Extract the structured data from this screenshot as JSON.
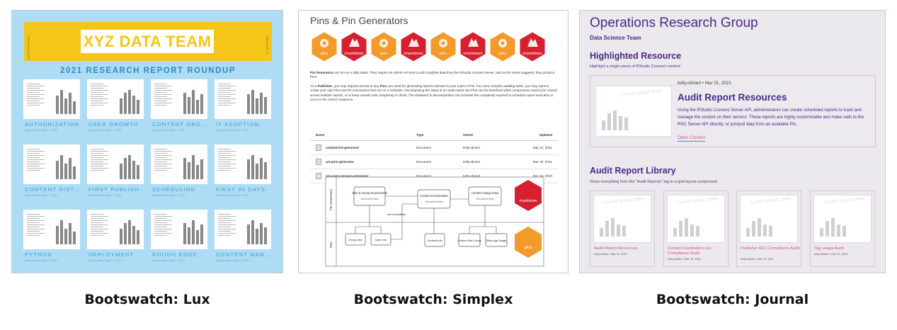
{
  "panels": {
    "lux_label": "Bootswatch: Lux",
    "simplex_label": "Bootswatch: Simplex",
    "journal_label": "Bootswatch: Journal"
  },
  "lux": {
    "banner_title": "XYZ DATA TEAM",
    "banner_side_left": "DASHBOARD",
    "banner_side_right": "REPORTS",
    "subtitle": "2021 RESEARCH REPORT ROUNDUP",
    "cards": [
      {
        "title": "AUTHORIZATION",
        "meta": "kelly.obriant • May 17, 2021"
      },
      {
        "title": "USER GROWTH",
        "meta": "kelly.obriant • May 17, 2021"
      },
      {
        "title": "CONTENT ORG...",
        "meta": "kelly.obriant • May 17, 2021"
      },
      {
        "title": "IT ADOPTION",
        "meta": "kelly.obriant • May 17, 2021"
      },
      {
        "title": "CONTENT DIST...",
        "meta": "kelly.obriant • May 17, 2021"
      },
      {
        "title": "FIRST PUBLISH",
        "meta": "kelly.obriant • May 17, 2021"
      },
      {
        "title": "SCHEDULING",
        "meta": "kelly.obriant • May 17, 2021"
      },
      {
        "title": "FIRST 30 DAYS",
        "meta": "kelly.obriant • May 17, 2021"
      },
      {
        "title": "PYTHON",
        "meta": "kelly.obriant • May 17, 2021"
      },
      {
        "title": "DEPLOYMENT",
        "meta": "kelly.obriant • May 17, 2021"
      },
      {
        "title": "ROUGH EDGE",
        "meta": "kelly.obriant • May 17, 2021"
      },
      {
        "title": "CONTENT MAN...",
        "meta": "kelly.obriant • May 17, 2021"
      }
    ]
  },
  "simplex": {
    "title": "Pins & Pin Generators",
    "hexes": [
      {
        "label": "pins",
        "color": "#f39a2b"
      },
      {
        "label": "rmarkdown",
        "color": "#d6202f"
      },
      {
        "label": "pins",
        "color": "#f39a2b"
      },
      {
        "label": "rmarkdown",
        "color": "#d6202f"
      },
      {
        "label": "pins",
        "color": "#f39a2b"
      },
      {
        "label": "rmarkdown",
        "color": "#d6202f"
      },
      {
        "label": "pins",
        "color": "#f39a2b"
      },
      {
        "label": "rmarkdown",
        "color": "#d6202f"
      }
    ],
    "para1_bold": "Pin Generators",
    "para1": " are run on a daily basis. They require an Admin API Key to pull complete data from the RStudio Connect server, and as the name suggests, they produce Pins.",
    "para2_pre": "As a ",
    "para2_bold1": "Publisher",
    "para2_mid": ", you may request access to any ",
    "para2_bold2": "Pins",
    "para2_post": " you need for generating reports relevant to your team's KPIs. For more complex auditing tasks, you may want to create your own Pins and Pin Generators that run on a schedule. Decomposing the steps of an audit report into Pins can be beneficial when components need to be reused across multiple reports, or to keep overall code complexity in check. The drawback is decomposition can increase the complexity required to schedule report execution to occur in the correct sequence.",
    "table": {
      "headers": [
        "Name",
        "Type",
        "Owner",
        "Updated"
      ],
      "rows": [
        {
          "name": "content-list-generator",
          "type": "Document",
          "owner": "kelly.obriant",
          "updated": "Mar 31, 2021"
        },
        {
          "name": "acl-pins-generator",
          "type": "Document",
          "owner": "kelly.obriant",
          "updated": "Mar 30, 2021"
        },
        {
          "name": "pin-users-groups-generator",
          "type": "Document",
          "owner": "kelly.obriant",
          "updated": "Dec 04, 2020"
        }
      ]
    },
    "diagram": {
      "lane_top": "Pin Generators",
      "lane_bottom": "Pins",
      "box_user_group": "User & Group Enumeration",
      "box_user_group_sub": "Scheduled Daily",
      "box_content_enum": "Content Enumeration",
      "box_content_enum_sub": "Scheduled Daily",
      "box_content_usage": "Content Usage Data",
      "box_content_usage_sub": "Scheduled Daily",
      "join_label": "Join on publisher",
      "pin_group_info": "Group Info",
      "pin_user_info": "User Info",
      "pin_content_info": "Content Info",
      "pin_visit_counts": "Content Visit Counts",
      "pin_shiny_usage": "Shiny App Usage",
      "badge_top": "rmarkdown",
      "badge_bottom": "pins"
    }
  },
  "journal": {
    "title": "Operations Research Group",
    "subtitle": "Data Science Team",
    "highlight_heading": "Highlighted Resource",
    "highlight_hint": "Highlight a single piece of RStudio Connect content:",
    "feature": {
      "meta": "kelly.obriant • Mar 31, 2021",
      "title": "Audit Report Resources",
      "desc": "Using the RStudio Connect Server API, administrators can create scheduled reports to track and manage the content on their servers. These reports are highly customizable and make calls to the RSC Server API directly, or join/pull data from an available Pin.",
      "link": "Open Content",
      "thumb_text": "Lorem ipsum dolor"
    },
    "library_heading": "Audit Report Library",
    "library_hint": "Show everything from the \"Audit Reports\" tag in a grid layout component:",
    "library": [
      {
        "title": "Audit Report Resources",
        "meta": "kelly.obriant • Mar 31, 2021",
        "thumb_text": "Lorem ipsum dolor"
      },
      {
        "title": "Content Distribution List Compliance Audit",
        "meta": "kelly.obriant • Mar 30, 2021",
        "thumb_text": "Lorem ipsum dolor"
      },
      {
        "title": "Publisher ACL Compliance Audit",
        "meta": "kelly.obriant • Mar 29, 2021",
        "thumb_text": "Lorem ipsum dolor"
      },
      {
        "title": "Tag Usage Audit",
        "meta": "kelly.obriant • Dec 14, 2020",
        "thumb_text": "Lorem ipsum dolor"
      }
    ]
  }
}
